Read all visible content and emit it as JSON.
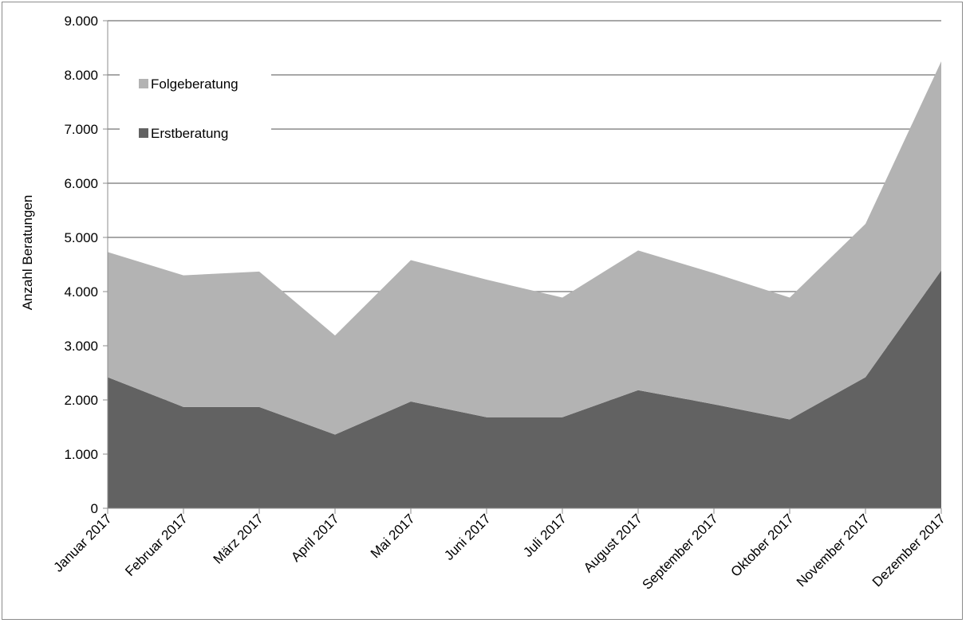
{
  "chart_data": {
    "type": "area",
    "stacked": true,
    "categories": [
      "Januar 2017",
      "Februar 2017",
      "März 2017",
      "April 2017",
      "Mai 2017",
      "Juni 2017",
      "Juli 2017",
      "August 2017",
      "September 2017",
      "Oktober 2017",
      "November 2017",
      "Dezember 2017"
    ],
    "series": [
      {
        "name": "Erstberatung",
        "color": "#626262",
        "values": [
          2420,
          1870,
          1870,
          1360,
          1970,
          1680,
          1680,
          2180,
          1920,
          1640,
          2420,
          4390
        ]
      },
      {
        "name": "Folgeberatung",
        "color": "#b3b3b3",
        "values": [
          2310,
          2430,
          2500,
          1830,
          2610,
          2540,
          2210,
          2580,
          2420,
          2250,
          2830,
          3860
        ]
      }
    ],
    "title": "",
    "xlabel": "",
    "ylabel": "Anzahl Beratungen",
    "ylim": [
      0,
      9000
    ],
    "yticks": [
      0,
      1000,
      2000,
      3000,
      4000,
      5000,
      6000,
      7000,
      8000,
      9000
    ],
    "ytick_labels": [
      "0",
      "1.000",
      "2.000",
      "3.000",
      "4.000",
      "5.000",
      "6.000",
      "7.000",
      "8.000",
      "9.000"
    ],
    "grid": true,
    "gridline_color": "#8c8c8c",
    "legend_position": "top-left",
    "legend": [
      "Folgeberatung",
      "Erstberatung"
    ]
  }
}
